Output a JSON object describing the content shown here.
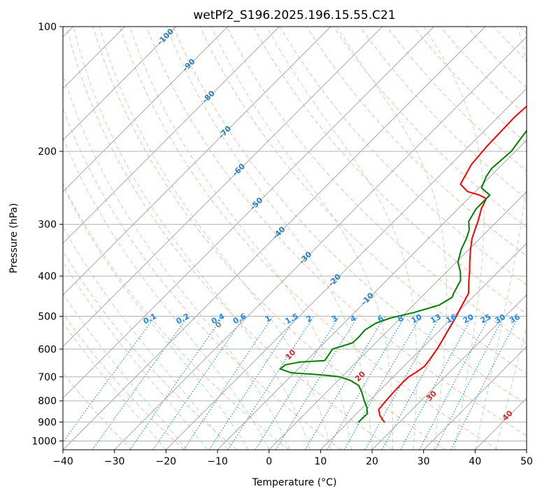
{
  "chart_data": {
    "type": "line",
    "diagram": "skew-t log-p",
    "title": "wetPf2_S196.2025.196.15.55.C21",
    "xlabel": "Temperature (°C)",
    "ylabel": "Pressure (hPa)",
    "xlim": [
      -40,
      50
    ],
    "ylim": [
      1050,
      100
    ],
    "y_scale": "log",
    "x_ticks": [
      -40,
      -30,
      -20,
      -10,
      0,
      10,
      20,
      30,
      40,
      50
    ],
    "y_ticks": [
      100,
      200,
      300,
      400,
      500,
      600,
      700,
      800,
      900,
      1000
    ],
    "grid": true,
    "colors": {
      "temperature": "#ff0000",
      "dewpoint": "#008000",
      "isotherm": "#a8a8a8",
      "dry_adiabat": "#f4a582",
      "moist_adiabat": "#9fd49f",
      "mixing_ratio": "#1e88e5",
      "isotherm_label": "#2c7fb8",
      "dry_adiabat_label": "#d62728",
      "zero_label": "#7f7f7f"
    },
    "series": [
      {
        "key": "temperature",
        "x": [
          17.0,
          15.0,
          13.5,
          13.2,
          13.0,
          12.9,
          13.0,
          13.6,
          14.0,
          13.6,
          13.1,
          12.4,
          11.6,
          10.8,
          9.8,
          8.4,
          6.0,
          4.4,
          2.6,
          0.3,
          -1.5,
          -2.6,
          -3.7,
          -5.5,
          -6.5,
          -8.5,
          -11.5,
          -14.3,
          -16.0,
          -16.5,
          -16.8,
          -14.7
        ],
        "y": [
          900,
          870,
          840,
          800,
          760,
          720,
          700,
          680,
          660,
          630,
          600,
          570,
          540,
          510,
          480,
          440,
          410,
          390,
          370,
          345,
          325,
          310,
          295,
          275,
          260,
          255,
          250,
          240,
          215,
          195,
          165,
          100
        ]
      },
      {
        "key": "dewpoint",
        "x": [
          12.0,
          12.1,
          10.8,
          9.0,
          7.0,
          5.0,
          2.5,
          -0.5,
          -3.0,
          -6.0,
          -10.5,
          -13.5,
          -13.3,
          -11.0,
          -6.5,
          -6.8,
          -7.2,
          -4.5,
          -4.4,
          -4.6,
          -3.8,
          -2.0,
          1.5,
          5.0,
          6.0,
          5.5,
          4.4,
          2.6,
          0.3,
          -1.5,
          -2.6,
          -3.7,
          -5.5,
          -6.5,
          -6.5,
          -9.5,
          -10.8,
          -11.3,
          -10.8,
          -11.5,
          -12.2,
          -12.3,
          -10.3,
          -7.3,
          -8.9
        ],
        "y": [
          900,
          860,
          830,
          800,
          765,
          735,
          715,
          700,
          695,
          690,
          685,
          670,
          655,
          645,
          640,
          620,
          600,
          580,
          560,
          540,
          520,
          505,
          490,
          470,
          450,
          440,
          410,
          390,
          370,
          345,
          325,
          310,
          295,
          275,
          255,
          245,
          230,
          220,
          200,
          185,
          170,
          155,
          130,
          115,
          100
        ]
      }
    ],
    "isotherm_labels": [
      "-100",
      "-90",
      "-80",
      "-70",
      "-60",
      "-50",
      "-40",
      "-30",
      "-20",
      "-10"
    ],
    "mixing_ratio_labels": [
      "0.1",
      "0.2",
      "0.4",
      "0.6",
      "1",
      "1.5",
      "2",
      "3",
      "4",
      "6",
      "8",
      "10",
      "13",
      "16",
      "20",
      "25",
      "30",
      "36"
    ],
    "adiabat_labels": [
      "0",
      "10",
      "20",
      "30",
      "40"
    ]
  }
}
